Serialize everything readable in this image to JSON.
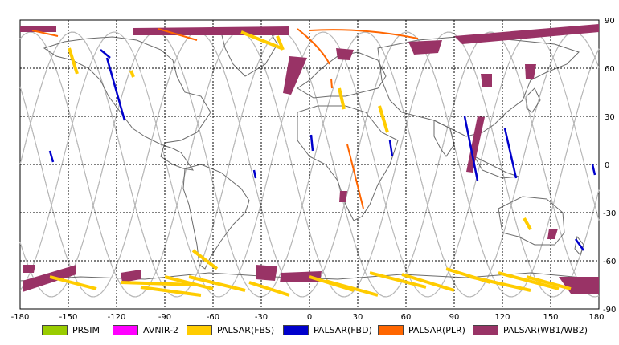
{
  "map": {
    "lon_ticks": [
      "-180",
      "-150",
      "-120",
      "-90",
      "-60",
      "-30",
      "0",
      "30",
      "60",
      "90",
      "120",
      "150",
      "180"
    ],
    "lat_ticks": [
      "90",
      "60",
      "30",
      "0",
      "-30",
      "-60",
      "-90"
    ],
    "lon_range": [
      -180,
      180
    ],
    "lat_range": [
      -90,
      90
    ]
  },
  "legend": {
    "items": [
      {
        "label": "PRSIM",
        "color": "#99cc00"
      },
      {
        "label": "AVNIR-2",
        "color": "#ff00ff"
      },
      {
        "label": "PALSAR(FBS)",
        "color": "#ffcc00"
      },
      {
        "label": "PALSAR(FBD)",
        "color": "#0000cc"
      },
      {
        "label": "PALSAR(PLR)",
        "color": "#ff6600"
      },
      {
        "label": "PALSAR(WB1/WB2)",
        "color": "#993366"
      }
    ]
  }
}
